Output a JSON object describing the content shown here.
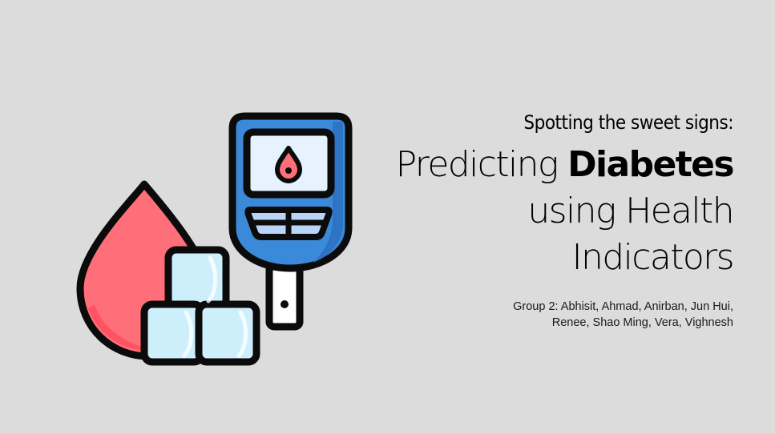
{
  "slide": {
    "subtitle": "Spotting the sweet signs:",
    "title": {
      "line1_prefix": "Predicting ",
      "line1_bold": "Diabetes",
      "line2": "using Health",
      "line3": "Indicators"
    },
    "authors": {
      "line1": "Group 2: Abhisit, Ahmad, Anirban, Jun Hui,",
      "line2": "Renee, Shao Ming, Vera, Vighnesh"
    }
  },
  "illustration": {
    "icons": [
      "blood-drop-icon",
      "sugar-cubes-icon",
      "glucose-meter-icon"
    ],
    "colors": {
      "drop": "#ff6f7a",
      "drop_shade": "#ff4f5f",
      "cube": "#cdeffc",
      "meter_body": "#3b8ad9",
      "meter_screen": "#e6f3ff",
      "meter_buttons": "#b9d4f7",
      "outline": "#0b0b0b",
      "background": "#dcdcdc"
    }
  }
}
